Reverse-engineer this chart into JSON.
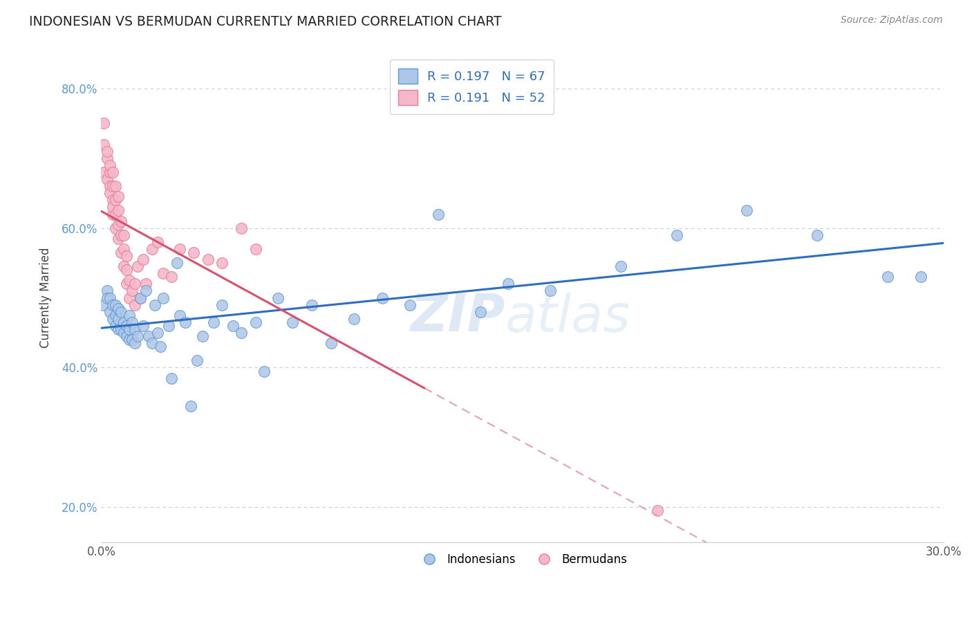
{
  "title": "INDONESIAN VS BERMUDAN CURRENTLY MARRIED CORRELATION CHART",
  "source_text": "Source: ZipAtlas.com",
  "ylabel": "Currently Married",
  "xlim": [
    0.0,
    0.3
  ],
  "ylim": [
    0.15,
    0.85
  ],
  "xtick_labels": [
    "0.0%",
    "",
    "",
    "",
    "",
    "",
    "30.0%"
  ],
  "yticks": [
    0.2,
    0.4,
    0.6,
    0.8
  ],
  "ytick_labels": [
    "20.0%",
    "40.0%",
    "60.0%",
    "80.0%"
  ],
  "legend_r1": "0.197",
  "legend_n1": "67",
  "legend_r2": "0.191",
  "legend_n2": "52",
  "color_indonesian_fill": "#aec6e8",
  "color_indonesian_edge": "#5b9bd5",
  "color_bermudan_fill": "#f4b8c8",
  "color_bermudan_edge": "#e87da0",
  "color_line_indonesian": "#2e6dbf",
  "color_line_bermudan": "#d9506e",
  "color_dashed": "#e8a0b0",
  "color_title": "#222222",
  "color_source": "#888888",
  "color_ytick": "#5b9bd5",
  "watermark_zip": "ZIP",
  "watermark_atlas": "atlas",
  "indonesian_x": [
    0.001,
    0.002,
    0.002,
    0.003,
    0.003,
    0.004,
    0.004,
    0.005,
    0.005,
    0.005,
    0.006,
    0.006,
    0.006,
    0.007,
    0.007,
    0.008,
    0.008,
    0.009,
    0.009,
    0.01,
    0.01,
    0.01,
    0.011,
    0.011,
    0.012,
    0.012,
    0.013,
    0.014,
    0.015,
    0.016,
    0.017,
    0.018,
    0.019,
    0.02,
    0.021,
    0.022,
    0.024,
    0.025,
    0.027,
    0.028,
    0.03,
    0.032,
    0.034,
    0.036,
    0.04,
    0.043,
    0.047,
    0.05,
    0.055,
    0.058,
    0.063,
    0.068,
    0.075,
    0.082,
    0.09,
    0.1,
    0.11,
    0.12,
    0.135,
    0.145,
    0.16,
    0.185,
    0.205,
    0.23,
    0.255,
    0.28,
    0.292
  ],
  "indonesian_y": [
    0.49,
    0.51,
    0.5,
    0.48,
    0.5,
    0.47,
    0.49,
    0.46,
    0.475,
    0.49,
    0.455,
    0.47,
    0.485,
    0.455,
    0.48,
    0.45,
    0.465,
    0.445,
    0.46,
    0.44,
    0.455,
    0.475,
    0.44,
    0.465,
    0.435,
    0.455,
    0.445,
    0.5,
    0.46,
    0.51,
    0.445,
    0.435,
    0.49,
    0.45,
    0.43,
    0.5,
    0.46,
    0.385,
    0.55,
    0.475,
    0.465,
    0.345,
    0.41,
    0.445,
    0.465,
    0.49,
    0.46,
    0.45,
    0.465,
    0.395,
    0.5,
    0.465,
    0.49,
    0.435,
    0.47,
    0.5,
    0.49,
    0.62,
    0.48,
    0.52,
    0.51,
    0.545,
    0.59,
    0.625,
    0.59,
    0.53,
    0.53
  ],
  "bermudan_x": [
    0.001,
    0.001,
    0.001,
    0.002,
    0.002,
    0.002,
    0.003,
    0.003,
    0.003,
    0.003,
    0.004,
    0.004,
    0.004,
    0.004,
    0.004,
    0.005,
    0.005,
    0.005,
    0.005,
    0.006,
    0.006,
    0.006,
    0.006,
    0.007,
    0.007,
    0.007,
    0.008,
    0.008,
    0.008,
    0.009,
    0.009,
    0.009,
    0.01,
    0.01,
    0.011,
    0.012,
    0.012,
    0.013,
    0.014,
    0.015,
    0.016,
    0.018,
    0.02,
    0.022,
    0.025,
    0.028,
    0.033,
    0.038,
    0.043,
    0.05,
    0.055,
    0.198
  ],
  "bermudan_y": [
    0.72,
    0.68,
    0.75,
    0.7,
    0.67,
    0.71,
    0.66,
    0.68,
    0.65,
    0.69,
    0.62,
    0.64,
    0.66,
    0.68,
    0.63,
    0.6,
    0.62,
    0.64,
    0.66,
    0.585,
    0.605,
    0.625,
    0.645,
    0.565,
    0.59,
    0.61,
    0.545,
    0.57,
    0.59,
    0.52,
    0.54,
    0.56,
    0.5,
    0.525,
    0.51,
    0.49,
    0.52,
    0.545,
    0.5,
    0.555,
    0.52,
    0.57,
    0.58,
    0.535,
    0.53,
    0.57,
    0.565,
    0.555,
    0.55,
    0.6,
    0.57,
    0.195
  ]
}
